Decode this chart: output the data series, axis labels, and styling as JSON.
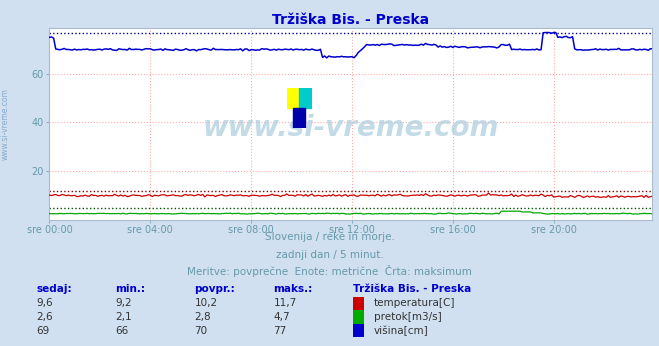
{
  "title": "Tržiška Bis. - Preska",
  "title_color": "#0000cc",
  "bg_color": "#d0e0f0",
  "plot_bg_color": "#ffffff",
  "xlabel_times": [
    "sre 00:00",
    "sre 04:00",
    "sre 08:00",
    "sre 12:00",
    "sre 16:00",
    "sre 20:00"
  ],
  "ylim": [
    0,
    79
  ],
  "xlim": [
    0,
    287
  ],
  "grid_color": "#ffaaaa",
  "subtitle1": "Slovenija / reke in morje.",
  "subtitle2": "zadnji dan / 5 minut.",
  "subtitle3": "Meritve: povprečne  Enote: metrične  Črta: maksimum",
  "subtitle_color": "#6699aa",
  "watermark": "www.si-vreme.com",
  "watermark_color": "#aaccdd",
  "tick_color": "#6699aa",
  "temp_color": "#cc0000",
  "temp_max_color": "#880000",
  "flow_color": "#00aa00",
  "flow_max_color": "#005500",
  "height_color": "#0000cc",
  "height_max_color": "#000099",
  "temp_min": 9.2,
  "temp_max": 11.7,
  "temp_avg": 10.2,
  "temp_curr": 9.6,
  "flow_min": 2.1,
  "flow_max": 4.7,
  "flow_avg": 2.8,
  "flow_curr": 2.6,
  "height_min": 66,
  "height_max": 77,
  "height_avg": 70,
  "height_curr": 69,
  "table_header_color": "#0000cc",
  "table_data_color": "#333333",
  "legend_title": "Tržiška Bis. - Preska",
  "legend_title_color": "#0000cc",
  "sidebar_text": "www.si-vreme.com",
  "sidebar_color": "#88aacc",
  "logo_yellow": "#ffff00",
  "logo_cyan": "#00cccc",
  "logo_blue": "#0000aa"
}
